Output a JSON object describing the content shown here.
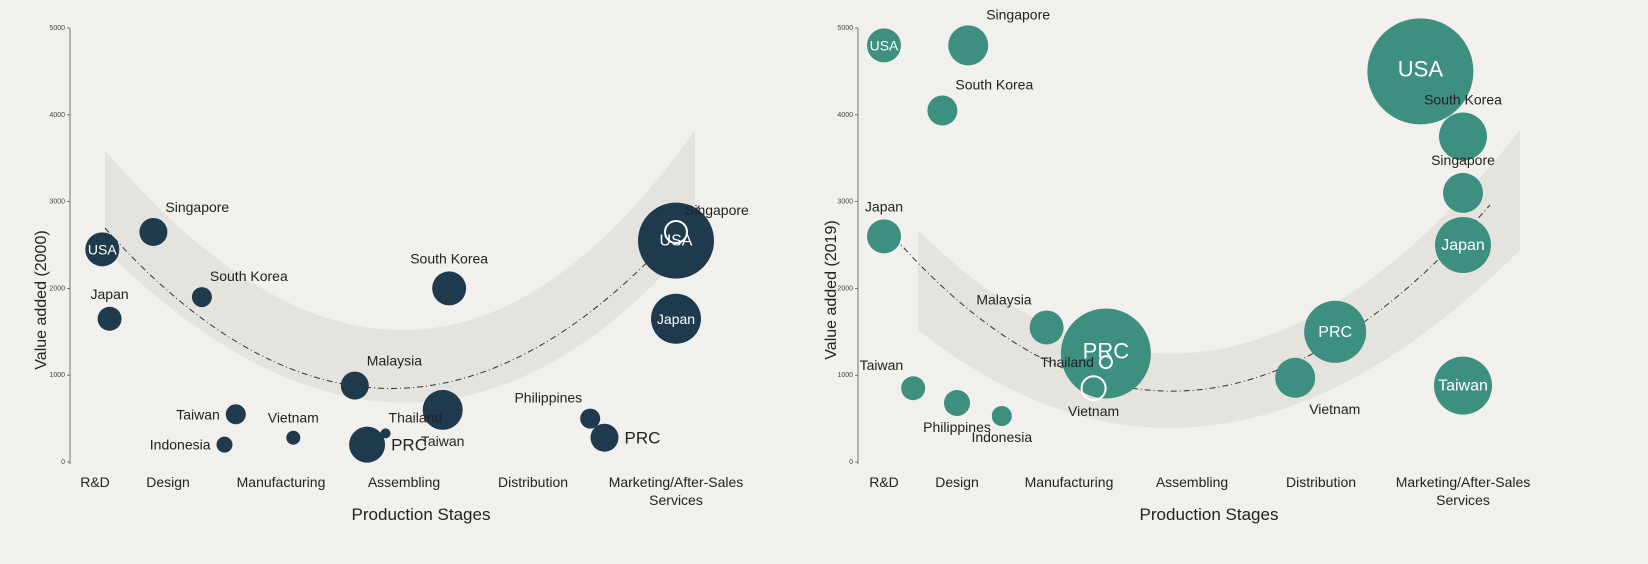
{
  "chart_data": [
    {
      "type": "scatter",
      "variant": "bubble",
      "xlabel": "Production Stages",
      "ylabel": "Value added   (2000)",
      "ylim": [
        0,
        5000
      ],
      "yticks": [
        0,
        1000,
        2000,
        3000,
        4000,
        5000
      ],
      "categories": [
        "R&D",
        "Design",
        "Manufacturing",
        "Assembling",
        "Distribution",
        "Marketing/After-Sales\nServices"
      ],
      "grid": false,
      "bubble_color": "#1f3a4d",
      "trend": "smile curve",
      "points": [
        {
          "label": "USA",
          "x": 0.1,
          "y": 2450,
          "size": 34,
          "label_pos": "inside"
        },
        {
          "label": "Japan",
          "x": 0.2,
          "y": 1650,
          "size": 24,
          "label_pos": "above"
        },
        {
          "label": "Singapore",
          "x": 0.8,
          "y": 2650,
          "size": 28,
          "label_pos": "above-right"
        },
        {
          "label": "South Korea",
          "x": 1.3,
          "y": 1900,
          "size": 20,
          "label_pos": "above-right"
        },
        {
          "label": "Taiwan",
          "x": 1.6,
          "y": 550,
          "size": 20,
          "label_pos": "left"
        },
        {
          "label": "Indonesia",
          "x": 1.5,
          "y": 200,
          "size": 16,
          "label_pos": "left"
        },
        {
          "label": "Vietnam",
          "x": 2.1,
          "y": 280,
          "size": 14,
          "label_pos": "above"
        },
        {
          "label": "Malaysia",
          "x": 2.6,
          "y": 880,
          "size": 28,
          "label_pos": "above-right"
        },
        {
          "label": "PRC",
          "x": 2.7,
          "y": 200,
          "size": 36,
          "label_pos": "right"
        },
        {
          "label": "Thailand",
          "x": 2.85,
          "y": 330,
          "size": 10,
          "label_pos": "above-right"
        },
        {
          "label": "Taiwan",
          "x": 3.3,
          "y": 600,
          "size": 40,
          "label_pos": "below"
        },
        {
          "label": "South Korea",
          "x": 3.35,
          "y": 2000,
          "size": 34,
          "label_pos": "above"
        },
        {
          "label": "Philippines",
          "x": 4.4,
          "y": 500,
          "size": 20,
          "label_pos": "above-left"
        },
        {
          "label": "PRC",
          "x": 4.5,
          "y": 280,
          "size": 28,
          "label_pos": "right"
        },
        {
          "label": "USA",
          "x": 5.1,
          "y": 2550,
          "size": 76,
          "label_pos": "inside"
        },
        {
          "label": "Singapore",
          "x": 5.3,
          "y": 2650,
          "size": 22,
          "label_pos": "above-right",
          "hollow": true
        },
        {
          "label": "Japan",
          "x": 5.3,
          "y": 1650,
          "size": 50,
          "label_pos": "inside"
        }
      ]
    },
    {
      "type": "scatter",
      "variant": "bubble",
      "xlabel": "Production Stages",
      "ylabel": "Value added  (2019)",
      "ylim": [
        0,
        5000
      ],
      "yticks": [
        0,
        1000,
        2000,
        3000,
        4000,
        5000
      ],
      "categories": [
        "R&D",
        "Design",
        "Manufacturing",
        "Assembling",
        "Distribution",
        "Marketing/After-Sales\nServices"
      ],
      "grid": false,
      "bubble_color": "#3d8f7f",
      "trend": "smile curve",
      "points": [
        {
          "label": "USA",
          "x": 0.0,
          "y": 4800,
          "size": 34,
          "label_pos": "inside"
        },
        {
          "label": "Japan",
          "x": 0.0,
          "y": 2600,
          "size": 34,
          "label_pos": "above"
        },
        {
          "label": "Singapore",
          "x": 1.1,
          "y": 4800,
          "size": 40,
          "label_pos": "above-right"
        },
        {
          "label": "South Korea",
          "x": 0.8,
          "y": 4050,
          "size": 30,
          "label_pos": "above-right"
        },
        {
          "label": "Taiwan",
          "x": 0.4,
          "y": 850,
          "size": 24,
          "label_pos": "above-left"
        },
        {
          "label": "Philippines",
          "x": 1.0,
          "y": 680,
          "size": 26,
          "label_pos": "below"
        },
        {
          "label": "Indonesia",
          "x": 1.4,
          "y": 530,
          "size": 20,
          "label_pos": "below"
        },
        {
          "label": "Malaysia",
          "x": 1.8,
          "y": 1550,
          "size": 34,
          "label_pos": "above-left"
        },
        {
          "label": "PRC",
          "x": 2.3,
          "y": 1250,
          "size": 90,
          "label_pos": "inside"
        },
        {
          "label": "Thailand",
          "x": 2.3,
          "y": 1150,
          "size": 12,
          "label_pos": "left",
          "hollow": true
        },
        {
          "label": "Vietnam",
          "x": 2.2,
          "y": 850,
          "size": 24,
          "label_pos": "below",
          "hollow": true
        },
        {
          "label": "Vietnam",
          "x": 3.8,
          "y": 970,
          "size": 40,
          "label_pos": "below-right"
        },
        {
          "label": "PRC",
          "x": 4.1,
          "y": 1500,
          "size": 62,
          "label_pos": "inside"
        },
        {
          "label": "USA",
          "x": 4.7,
          "y": 4500,
          "size": 106,
          "label_pos": "inside"
        },
        {
          "label": "South Korea",
          "x": 5.4,
          "y": 3750,
          "size": 48,
          "label_pos": "above"
        },
        {
          "label": "Singapore",
          "x": 5.3,
          "y": 3100,
          "size": 40,
          "label_pos": "above"
        },
        {
          "label": "Japan",
          "x": 5.0,
          "y": 2500,
          "size": 56,
          "label_pos": "inside"
        },
        {
          "label": "Taiwan",
          "x": 5.3,
          "y": 880,
          "size": 58,
          "label_pos": "inside"
        }
      ]
    }
  ]
}
